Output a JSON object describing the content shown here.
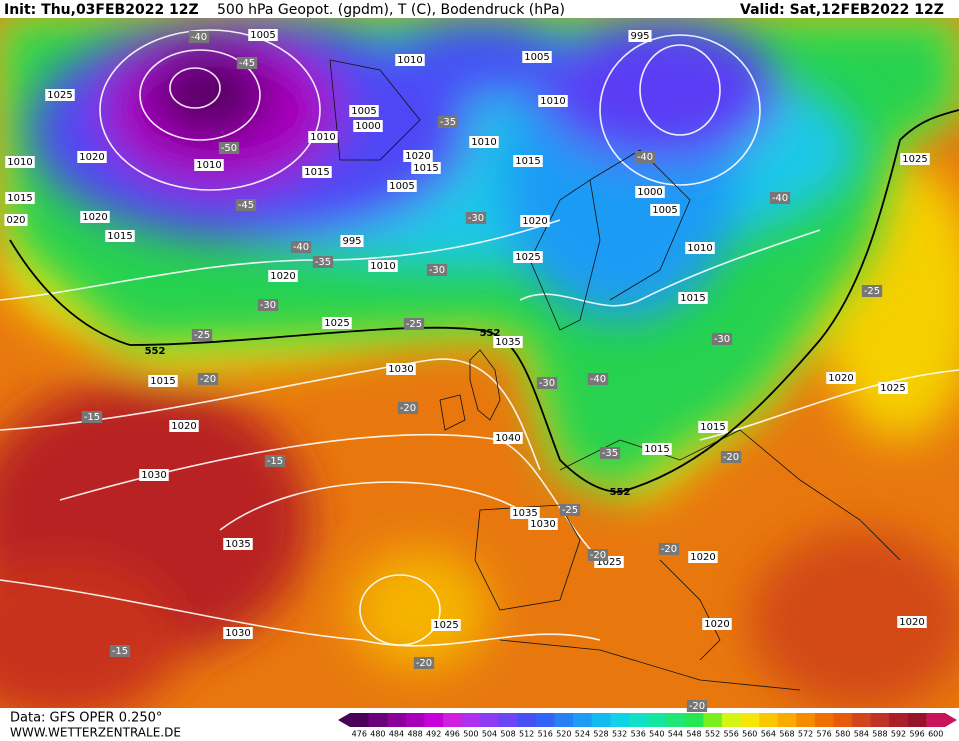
{
  "header": {
    "init": "Init: Thu,03FEB2022 12Z",
    "title": "500 hPa Geopot. (gpdm), T (C), Bodendruck (hPa)",
    "valid": "Valid: Sat,12FEB2022 12Z"
  },
  "footer": {
    "data": "Data: GFS OPER 0.250°",
    "site": "WWW.WETTERZENTRALE.DE"
  },
  "colorbar": {
    "labels": [
      476,
      480,
      484,
      488,
      492,
      496,
      500,
      504,
      508,
      512,
      516,
      520,
      524,
      528,
      532,
      536,
      540,
      544,
      548,
      552,
      556,
      560,
      564,
      568,
      572,
      576,
      580,
      584,
      588,
      592,
      596,
      600
    ],
    "colors": [
      "#4b0058",
      "#6a007a",
      "#8a0099",
      "#a800b8",
      "#c800d8",
      "#d020e0",
      "#b030f0",
      "#8c3cf0",
      "#6a46f5",
      "#4650f5",
      "#3264f5",
      "#2880f5",
      "#1e9bf5",
      "#14b9f0",
      "#0fd2e6",
      "#0fe1c8",
      "#14e6a0",
      "#1ee678",
      "#28e650",
      "#78f01e",
      "#d2f514",
      "#f5e60a",
      "#fac800",
      "#faaa00",
      "#f58c00",
      "#f07000",
      "#e65a0a",
      "#d2461e",
      "#be3228",
      "#aa1e28",
      "#961428",
      "#c8145a"
    ]
  },
  "map": {
    "pressure_labels": [
      "1005",
      "1010",
      "1005",
      "995",
      "1025",
      "1010",
      "1005",
      "1000",
      "1010",
      "1010",
      "1020",
      "1010",
      "1010",
      "1015",
      "1020",
      "1015",
      "1015",
      "1025",
      "1005",
      "1000",
      "1015",
      "1005",
      "020",
      "1020",
      "1020",
      "1015",
      "995",
      "1010",
      "1025",
      "1010",
      "1020",
      "1015",
      "1025",
      "1035",
      "1015",
      "1030",
      "1020",
      "1025",
      "1020",
      "1015",
      "1040",
      "1015",
      "1030",
      "1035",
      "1030",
      "1035",
      "1025",
      "1020",
      "1025",
      "1030",
      "1020",
      "1020"
    ],
    "temperature_labels": [
      "-40",
      "-45",
      "-35",
      "-50",
      "-45",
      "-40",
      "-35",
      "-30",
      "-30",
      "-40",
      "-40",
      "-25",
      "-30",
      "-25",
      "-25",
      "-30",
      "-30",
      "-40",
      "-20",
      "-20",
      "-15",
      "-15",
      "-35",
      "-20",
      "-25",
      "-20",
      "-20",
      "-15",
      "-20",
      "-20"
    ],
    "height_labels": [
      "552",
      "552",
      "552"
    ]
  }
}
